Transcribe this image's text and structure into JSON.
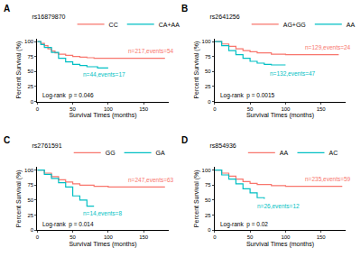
{
  "chart_data": [
    {
      "type": "line",
      "title": "A",
      "legend_title": "rs16879870",
      "legend": "top",
      "line_style": "step",
      "grid": false,
      "x_label": "Survival Times (months)",
      "y_label": "Percent Survival (%)",
      "xlim": [
        0,
        185
      ],
      "xticks": [
        0,
        50,
        100,
        150
      ],
      "ylim": [
        0,
        105
      ],
      "yticks": [
        0,
        25,
        50,
        75,
        100
      ],
      "series": [
        {
          "name": "CC",
          "color": "#F8766D",
          "x": [
            0,
            5,
            10,
            15,
            20,
            25,
            30,
            40,
            50,
            60,
            70,
            80,
            100,
            180
          ],
          "values": [
            100,
            97,
            93,
            88,
            84,
            81,
            79,
            77,
            75,
            74,
            73,
            72,
            72,
            72
          ]
        },
        {
          "name": "CA+AA",
          "color": "#00BFC4",
          "x": [
            0,
            5,
            10,
            20,
            30,
            40,
            50,
            60,
            70,
            85,
            100
          ],
          "values": [
            100,
            95,
            90,
            82,
            72,
            66,
            62,
            60,
            58,
            56,
            56
          ]
        }
      ],
      "annotations": [
        {
          "text": "n=217,events=54",
          "x": 125,
          "y": 84,
          "color": "#F8766D"
        },
        {
          "text": "n=44,events=17",
          "x": 62,
          "y": 45,
          "color": "#00BFC4"
        },
        {
          "text": "Log-rank  p = 0.046",
          "x": 5,
          "y": 10,
          "color": "#000000"
        }
      ]
    },
    {
      "type": "line",
      "title": "B",
      "legend_title": "rs2641256",
      "legend": "top",
      "line_style": "step",
      "grid": false,
      "x_label": "Survival Times (months)",
      "y_label": "Percent Survival (%)",
      "xlim": [
        0,
        185
      ],
      "xticks": [
        0,
        50,
        100,
        150
      ],
      "ylim": [
        0,
        105
      ],
      "yticks": [
        0,
        25,
        50,
        75,
        100
      ],
      "series": [
        {
          "name": "AG+GG",
          "color": "#F8766D",
          "x": [
            0,
            10,
            20,
            30,
            40,
            50,
            60,
            80,
            100,
            175
          ],
          "values": [
            100,
            96,
            92,
            88,
            85,
            83,
            81,
            79,
            78,
            78
          ]
        },
        {
          "name": "AA",
          "color": "#00BFC4",
          "x": [
            0,
            10,
            20,
            30,
            40,
            50,
            60,
            70,
            80,
            100
          ],
          "values": [
            100,
            93,
            85,
            78,
            72,
            67,
            64,
            62,
            61,
            61
          ]
        }
      ],
      "annotations": [
        {
          "text": "n=129,events=24",
          "x": 125,
          "y": 90,
          "color": "#F8766D"
        },
        {
          "text": "n=132,events=47",
          "x": 75,
          "y": 47,
          "color": "#00BFC4"
        },
        {
          "text": "Log-rank  p = 0.0015",
          "x": 5,
          "y": 10,
          "color": "#000000"
        }
      ]
    },
    {
      "type": "line",
      "title": "C",
      "legend_title": "rs2761591",
      "legend": "top",
      "line_style": "step",
      "grid": false,
      "x_label": "Survival Times (months)",
      "y_label": "Percent Survival (%)",
      "xlim": [
        0,
        185
      ],
      "xticks": [
        0,
        50,
        100,
        150
      ],
      "ylim": [
        0,
        105
      ],
      "yticks": [
        0,
        25,
        50,
        75,
        100
      ],
      "series": [
        {
          "name": "GG",
          "color": "#F8766D",
          "x": [
            0,
            10,
            20,
            30,
            40,
            50,
            60,
            80,
            100,
            180
          ],
          "values": [
            100,
            95,
            89,
            84,
            80,
            77,
            75,
            73,
            72,
            72
          ]
        },
        {
          "name": "GA",
          "color": "#00BFC4",
          "x": [
            0,
            10,
            20,
            30,
            40,
            50,
            60,
            70,
            80
          ],
          "values": [
            100,
            93,
            86,
            79,
            72,
            57,
            50,
            40,
            40
          ]
        }
      ],
      "annotations": [
        {
          "text": "n=247,events=63",
          "x": 125,
          "y": 84,
          "color": "#F8766D"
        },
        {
          "text": "n=14,events=8",
          "x": 62,
          "y": 28,
          "color": "#00BFC4"
        },
        {
          "text": "Log-rank  p = 0.014",
          "x": 5,
          "y": 10,
          "color": "#000000"
        }
      ]
    },
    {
      "type": "line",
      "title": "D",
      "legend_title": "rs854936",
      "legend": "top",
      "line_style": "step",
      "grid": false,
      "x_label": "Survival Times (months)",
      "y_label": "Percent Survival (%)",
      "xlim": [
        0,
        185
      ],
      "xticks": [
        0,
        50,
        100,
        150
      ],
      "ylim": [
        0,
        105
      ],
      "yticks": [
        0,
        25,
        50,
        75,
        100
      ],
      "series": [
        {
          "name": "AA",
          "color": "#F8766D",
          "x": [
            0,
            10,
            20,
            30,
            40,
            50,
            60,
            80,
            100,
            180
          ],
          "values": [
            100,
            95,
            90,
            85,
            81,
            78,
            76,
            74,
            73,
            73
          ]
        },
        {
          "name": "AC",
          "color": "#00BFC4",
          "x": [
            0,
            10,
            20,
            30,
            40,
            50,
            60,
            70
          ],
          "values": [
            100,
            92,
            85,
            77,
            69,
            62,
            54,
            52
          ]
        }
      ],
      "annotations": [
        {
          "text": "n=235,events=59",
          "x": 125,
          "y": 85,
          "color": "#F8766D"
        },
        {
          "text": "n=26,events=12",
          "x": 58,
          "y": 40,
          "color": "#00BFC4"
        },
        {
          "text": "Log-rank  p = 0.02",
          "x": 5,
          "y": 10,
          "color": "#000000"
        }
      ]
    }
  ]
}
